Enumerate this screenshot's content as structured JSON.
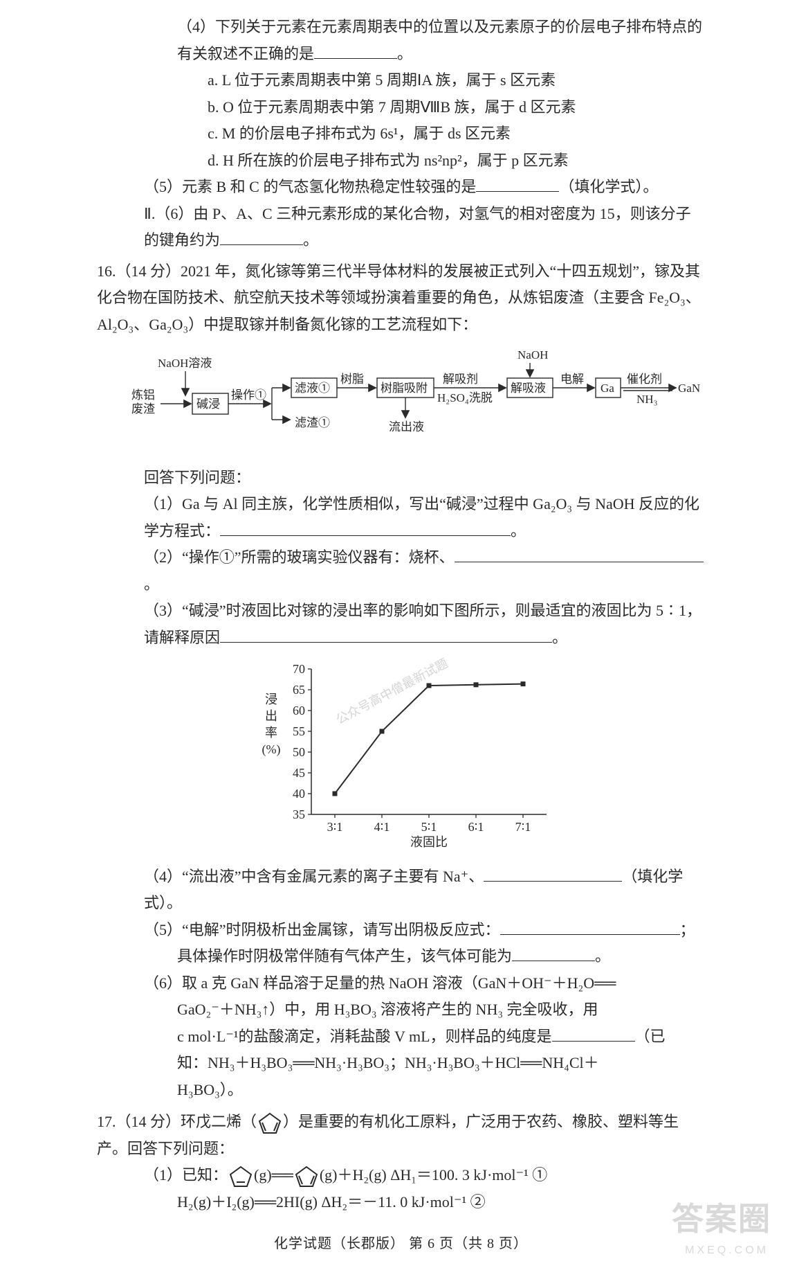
{
  "q15": {
    "p4_lead": "（4）下列关于元素在元素周期表中的位置以及元素原子的价层电子排布特点的有关叙述不正确的是",
    "p4_end": "。",
    "opt_a": "a. L 位于元素周期表中第 5 周期ⅠA 族，属于 s 区元素",
    "opt_b": "b. O 位于元素周期表中第 7 周期ⅧB 族，属于 d 区元素",
    "opt_c": "c. M 的价层电子排布式为 6s¹，属于 ds 区元素",
    "opt_d": "d. H 所在族的价层电子排布式为 ns²np²，属于 p 区元素",
    "p5_lead": "（5）元素 B 和 C 的气态氢化物热稳定性较强的是",
    "p5_end": "（填化学式）。",
    "p6_lead": "Ⅱ.（6）由 P、A、C 三种元素形成的某化合物，对氢气的相对密度为 15，则该分子的键角约为",
    "p6_end": "。"
  },
  "q16": {
    "num": "16.",
    "points": "（14 分）",
    "intro_a": "2021 年，氮化镓等第三代半导体材料的发展被正式列入“十四五规划”，镓及其化合物在国防技术、航空航天技术等领域扮演着重要的角色，从炼铝废渣（主要含 Fe₂O₃、Al₂O₃、Ga₂O₃）中提取镓并制备氮化镓的工艺流程如下：",
    "flow": {
      "start": "炼铝\n废渣",
      "naoh_top": "NaOH溶液",
      "jianjin": "碱浸",
      "op1": "操作①",
      "lvye1": "滤液①",
      "lvzha1": "滤渣①",
      "shuzhi": "树脂",
      "shuzhixf": "树脂吸附",
      "liuchu": "流出液",
      "jiexiji": "解吸剂",
      "h2so4": "H₂SO₄洗脱",
      "jiexiye": "解吸液",
      "naoh2": "NaOH",
      "dianjie": "电解",
      "ga": "Ga",
      "cuihuaji": "催化剂",
      "nh3": "NH₃",
      "gan": "GaN"
    },
    "answer_lead": "回答下列问题：",
    "p1_lead": "（1）Ga 与 Al 同主族，化学性质相似，写出“碱浸”过程中 Ga₂O₃ 与 NaOH 反应的化学方程式：",
    "p1_end": "。",
    "p2_lead": "（2）“操作①”所需的玻璃实验仪器有：烧杯、",
    "p2_end": "。",
    "p3_lead": "（3）“碱浸”时液固比对镓的浸出率的影响如下图所示，则最适宜的液固比为 5∶1，请解释原因",
    "p3_end": "。",
    "chart": {
      "type": "line",
      "x_categories": [
        "3∶1",
        "4∶1",
        "5∶1",
        "6∶1",
        "7∶1"
      ],
      "y_values": [
        40,
        55,
        66,
        66.2,
        66.4
      ],
      "ylim": [
        35,
        70
      ],
      "ytick_step": 5,
      "xlabel": "液固比",
      "ylabel": "浸出率(%)",
      "line_color": "#2a2a2a",
      "marker": "square",
      "marker_fill": "#2a2a2a",
      "marker_size": 7,
      "background": "#ffffff",
      "axis_color": "#2a2a2a",
      "font_size": 18,
      "diag_watermark": "公众号高中僧最新试题"
    },
    "p4_lead": "（4）“流出液”中含有金属元素的离子主要有 Na⁺、",
    "p4_end": "（填化学式）。",
    "p5_lead": "（5）“电解”时阴极析出金属镓，请写出阴极反应式：",
    "p5_end": "；",
    "p5b_lead": "具体操作时阴极常伴随有气体产生，该气体可能为",
    "p5b_end": "。",
    "p6_line1": "（6）取 a 克 GaN 样品溶于足量的热 NaOH 溶液（GaN＋OH⁻＋H₂O══",
    "p6_line2a": "GaO₂⁻＋NH₃↑）中，用 H₃BO₃ 溶液将产生的 NH₃ 完全吸收，用",
    "p6_line3a": "c mol·L⁻¹的盐酸滴定，消耗盐酸 V mL，则样品的纯度是",
    "p6_line3b": "（已",
    "p6_line4": "知：NH₃＋H₃BO₃══NH₃·H₃BO₃；NH₃·H₃BO₃＋HCl══NH₄Cl＋",
    "p6_line5": "H₃BO₃）。"
  },
  "q17": {
    "num": "17.",
    "points": "（14 分）",
    "intro_a": "环戊二烯（",
    "intro_b": "）是重要的有机化工原料，广泛用于农药、橡胶、塑料等生产。回答下列问题：",
    "p1_lead": "（1）已知：",
    "eq1_left_suffix": "(g)══",
    "eq1_right_suffix": "(g)＋H₂(g)   ΔH₁＝100. 3 kJ·mol⁻¹ ①",
    "eq2": "H₂(g)＋I₂(g)══2HI(g)   ΔH₂＝－11. 0 kJ·mol⁻¹   ②"
  },
  "footer": "化学试题（长郡版）  第 6 页（共 8 页）",
  "watermark": "答案圈",
  "watermark_sub": "MXEQ.COM"
}
